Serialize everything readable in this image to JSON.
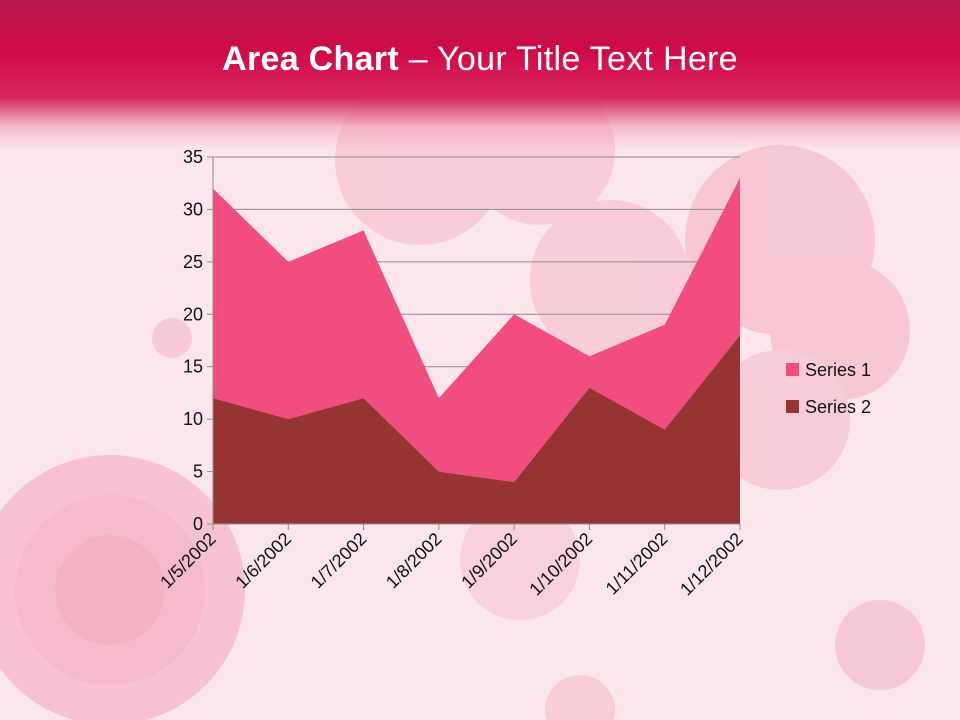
{
  "slide": {
    "title_bold": "Area Chart",
    "title_rest": " – Your Title Text Here"
  },
  "colors": {
    "series1": "#f24d7f",
    "series2": "#963333",
    "title_band": "#d10a49",
    "background": "#fbe6ec"
  },
  "chart_data": {
    "type": "area",
    "stacked": true,
    "categories": [
      "1/5/2002",
      "1/6/2002",
      "1/7/2002",
      "1/8/2002",
      "1/9/2002",
      "1/10/2002",
      "1/11/2002",
      "1/12/2002"
    ],
    "series": [
      {
        "name": "Series 1",
        "values": [
          20,
          15,
          16,
          7,
          16,
          3,
          10,
          15
        ],
        "color": "#f24d7f"
      },
      {
        "name": "Series 2",
        "values": [
          12,
          10,
          12,
          5,
          4,
          13,
          9,
          18
        ],
        "color": "#963333"
      }
    ],
    "ylim": [
      0,
      35
    ],
    "yticks": [
      0,
      5,
      10,
      15,
      20,
      25,
      30,
      35
    ],
    "grid": true,
    "legend": "right",
    "title": "",
    "xlabel": "",
    "ylabel": ""
  }
}
